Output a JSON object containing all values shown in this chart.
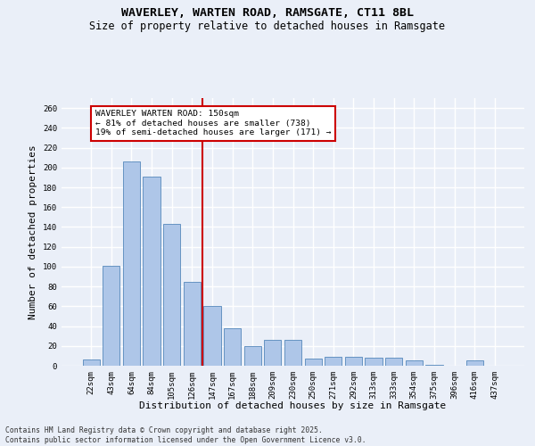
{
  "title1": "WAVERLEY, WARTEN ROAD, RAMSGATE, CT11 8BL",
  "title2": "Size of property relative to detached houses in Ramsgate",
  "xlabel": "Distribution of detached houses by size in Ramsgate",
  "ylabel": "Number of detached properties",
  "categories": [
    "22sqm",
    "43sqm",
    "64sqm",
    "84sqm",
    "105sqm",
    "126sqm",
    "147sqm",
    "167sqm",
    "188sqm",
    "209sqm",
    "230sqm",
    "250sqm",
    "271sqm",
    "292sqm",
    "313sqm",
    "333sqm",
    "354sqm",
    "375sqm",
    "396sqm",
    "416sqm",
    "437sqm"
  ],
  "values": [
    6,
    101,
    206,
    191,
    143,
    85,
    60,
    38,
    20,
    26,
    26,
    7,
    9,
    9,
    8,
    8,
    5,
    1,
    0,
    5,
    0
  ],
  "bar_color": "#aec6e8",
  "bar_edge_color": "#5588bb",
  "vline_x_index": 6,
  "vline_color": "#cc0000",
  "annotation_title": "WAVERLEY WARTEN ROAD: 150sqm",
  "annotation_line1": "← 81% of detached houses are smaller (738)",
  "annotation_line2": "19% of semi-detached houses are larger (171) →",
  "annotation_box_color": "#ffffff",
  "annotation_box_edgecolor": "#cc0000",
  "ylim": [
    0,
    270
  ],
  "yticks": [
    0,
    20,
    40,
    60,
    80,
    100,
    120,
    140,
    160,
    180,
    200,
    220,
    240,
    260
  ],
  "footnote1": "Contains HM Land Registry data © Crown copyright and database right 2025.",
  "footnote2": "Contains public sector information licensed under the Open Government Licence v3.0.",
  "bg_color": "#eaeff8",
  "grid_color": "#ffffff",
  "title_fontsize": 9.5,
  "subtitle_fontsize": 8.5,
  "tick_fontsize": 6.5,
  "label_fontsize": 8,
  "footnote_fontsize": 5.8
}
